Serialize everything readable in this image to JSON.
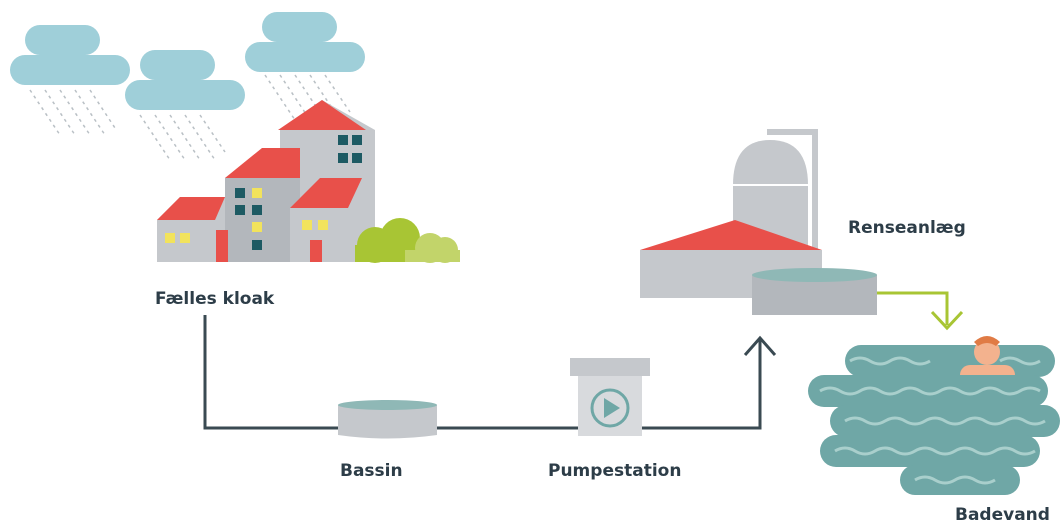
{
  "labels": {
    "sewer": "Fælles kloak",
    "basin": "Bassin",
    "pump": "Pumpestation",
    "plant": "Renseanlæg",
    "bathing": "Badevand"
  }
}
